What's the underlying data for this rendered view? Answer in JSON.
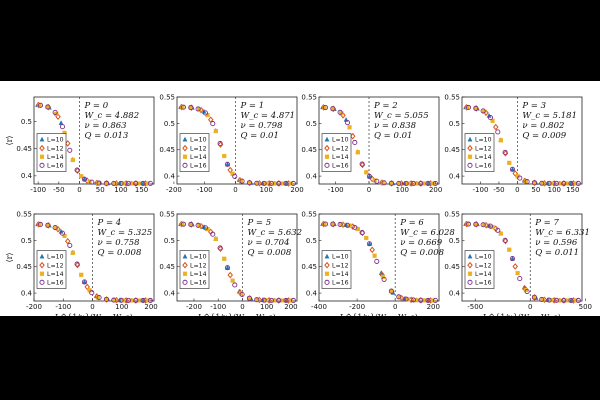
{
  "figure": {
    "ylabel": "⟨r⟩",
    "xlabel": "L^{1/ν}(W − W_c)",
    "legend": [
      "L=10",
      "L=12",
      "L=14",
      "L=16"
    ],
    "colors": {
      "L=10": "#1f77b4",
      "L=12": "#d95319",
      "L=14": "#edb120",
      "L=16": "#7e2f8e"
    },
    "markers": {
      "L=10": "triangle",
      "L=12": "diamond",
      "L=14": "square",
      "L=16": "circle"
    }
  },
  "chart_data": [
    {
      "type": "scatter",
      "annotation": [
        "P = 0",
        "W_c = 4.882",
        "ν = 0.863",
        "Q = 0.013"
      ],
      "xlim": [
        -110,
        180
      ],
      "ylim": [
        0.385,
        0.545
      ],
      "xticks": [
        -100,
        -50,
        0,
        50,
        100,
        150
      ],
      "yticks": [
        0.4,
        0.45,
        0.5
      ],
      "curve": {
        "plateau": 0.531,
        "floor": 0.386,
        "center": -28,
        "width": 14
      },
      "xlabel": "",
      "ylabel": "⟨r⟩"
    },
    {
      "type": "scatter",
      "annotation": [
        "P = 1",
        "W_c = 4.871",
        "ν = 0.798",
        "Q = 0.01"
      ],
      "xlim": [
        -190,
        200
      ],
      "ylim": [
        0.385,
        0.55
      ],
      "xticks": [
        -200,
        -100,
        0,
        100,
        200
      ],
      "yticks": [
        0.4,
        0.45,
        0.5,
        0.55
      ],
      "curve": {
        "plateau": 0.531,
        "floor": 0.386,
        "center": -48,
        "width": 20
      },
      "xlabel": "",
      "ylabel": ""
    },
    {
      "type": "scatter",
      "annotation": [
        "P = 2",
        "W_c = 5.055",
        "ν = 0.838",
        "Q = 0.01"
      ],
      "xlim": [
        -150,
        210
      ],
      "ylim": [
        0.385,
        0.55
      ],
      "xticks": [
        -100,
        0,
        100,
        200
      ],
      "yticks": [
        0.4,
        0.45,
        0.5,
        0.55
      ],
      "curve": {
        "plateau": 0.531,
        "floor": 0.386,
        "center": -40,
        "width": 18
      },
      "xlabel": "",
      "ylabel": ""
    },
    {
      "type": "scatter",
      "annotation": [
        "P = 3",
        "W_c = 5.181",
        "ν = 0.802",
        "Q = 0.009"
      ],
      "xlim": [
        -150,
        175
      ],
      "ylim": [
        0.385,
        0.55
      ],
      "xticks": [
        -100,
        -50,
        0,
        50,
        100,
        150
      ],
      "yticks": [
        0.4,
        0.45,
        0.5,
        0.55
      ],
      "curve": {
        "plateau": 0.531,
        "floor": 0.386,
        "center": -40,
        "width": 18
      },
      "xlabel": "",
      "ylabel": ""
    },
    {
      "type": "scatter",
      "annotation": [
        "P = 4",
        "W_c = 5.325",
        "ν = 0.758",
        "Q = 0.008"
      ],
      "xlim": [
        -200,
        210
      ],
      "ylim": [
        0.385,
        0.55
      ],
      "xticks": [
        -200,
        -100,
        0,
        100,
        200
      ],
      "yticks": [
        0.4,
        0.45,
        0.5,
        0.55
      ],
      "curve": {
        "plateau": 0.531,
        "floor": 0.386,
        "center": -55,
        "width": 24
      },
      "xlabel": "L^{1/ν}(W − W_c)",
      "ylabel": "⟨r⟩"
    },
    {
      "type": "scatter",
      "annotation": [
        "P = 5",
        "W_c = 5.632",
        "ν = 0.704",
        "Q = 0.008"
      ],
      "xlim": [
        -270,
        225
      ],
      "ylim": [
        0.385,
        0.55
      ],
      "xticks": [
        -200,
        -100,
        0,
        100,
        200
      ],
      "yticks": [
        0.4,
        0.45,
        0.5,
        0.55
      ],
      "curve": {
        "plateau": 0.531,
        "floor": 0.386,
        "center": -70,
        "width": 28
      },
      "xlabel": "L^{1/ν}(W − W_c)",
      "ylabel": ""
    },
    {
      "type": "scatter",
      "annotation": [
        "P = 6",
        "W_c = 6.028",
        "ν = 0.669",
        "Q = 0.008"
      ],
      "xlim": [
        -400,
        230
      ],
      "ylim": [
        0.385,
        0.55
      ],
      "xticks": [
        -400,
        -200,
        0,
        200
      ],
      "yticks": [
        0.4,
        0.45,
        0.5,
        0.55
      ],
      "curve": {
        "plateau": 0.531,
        "floor": 0.386,
        "center": -95,
        "width": 38
      },
      "xlabel": "L^{1/ν}(W − W_c)",
      "ylabel": ""
    },
    {
      "type": "scatter",
      "annotation": [
        "P = 7",
        "W_c = 6.331",
        "ν = 0.596",
        "Q = 0.011"
      ],
      "xlim": [
        -620,
        470
      ],
      "ylim": [
        0.385,
        0.55
      ],
      "xticks": [
        -500,
        0,
        500
      ],
      "yticks": [
        0.4,
        0.45,
        0.5,
        0.55
      ],
      "curve": {
        "plateau": 0.531,
        "floor": 0.386,
        "center": -150,
        "width": 60
      },
      "xlabel": "L^{1/ν}(W − W_c)",
      "ylabel": ""
    }
  ]
}
